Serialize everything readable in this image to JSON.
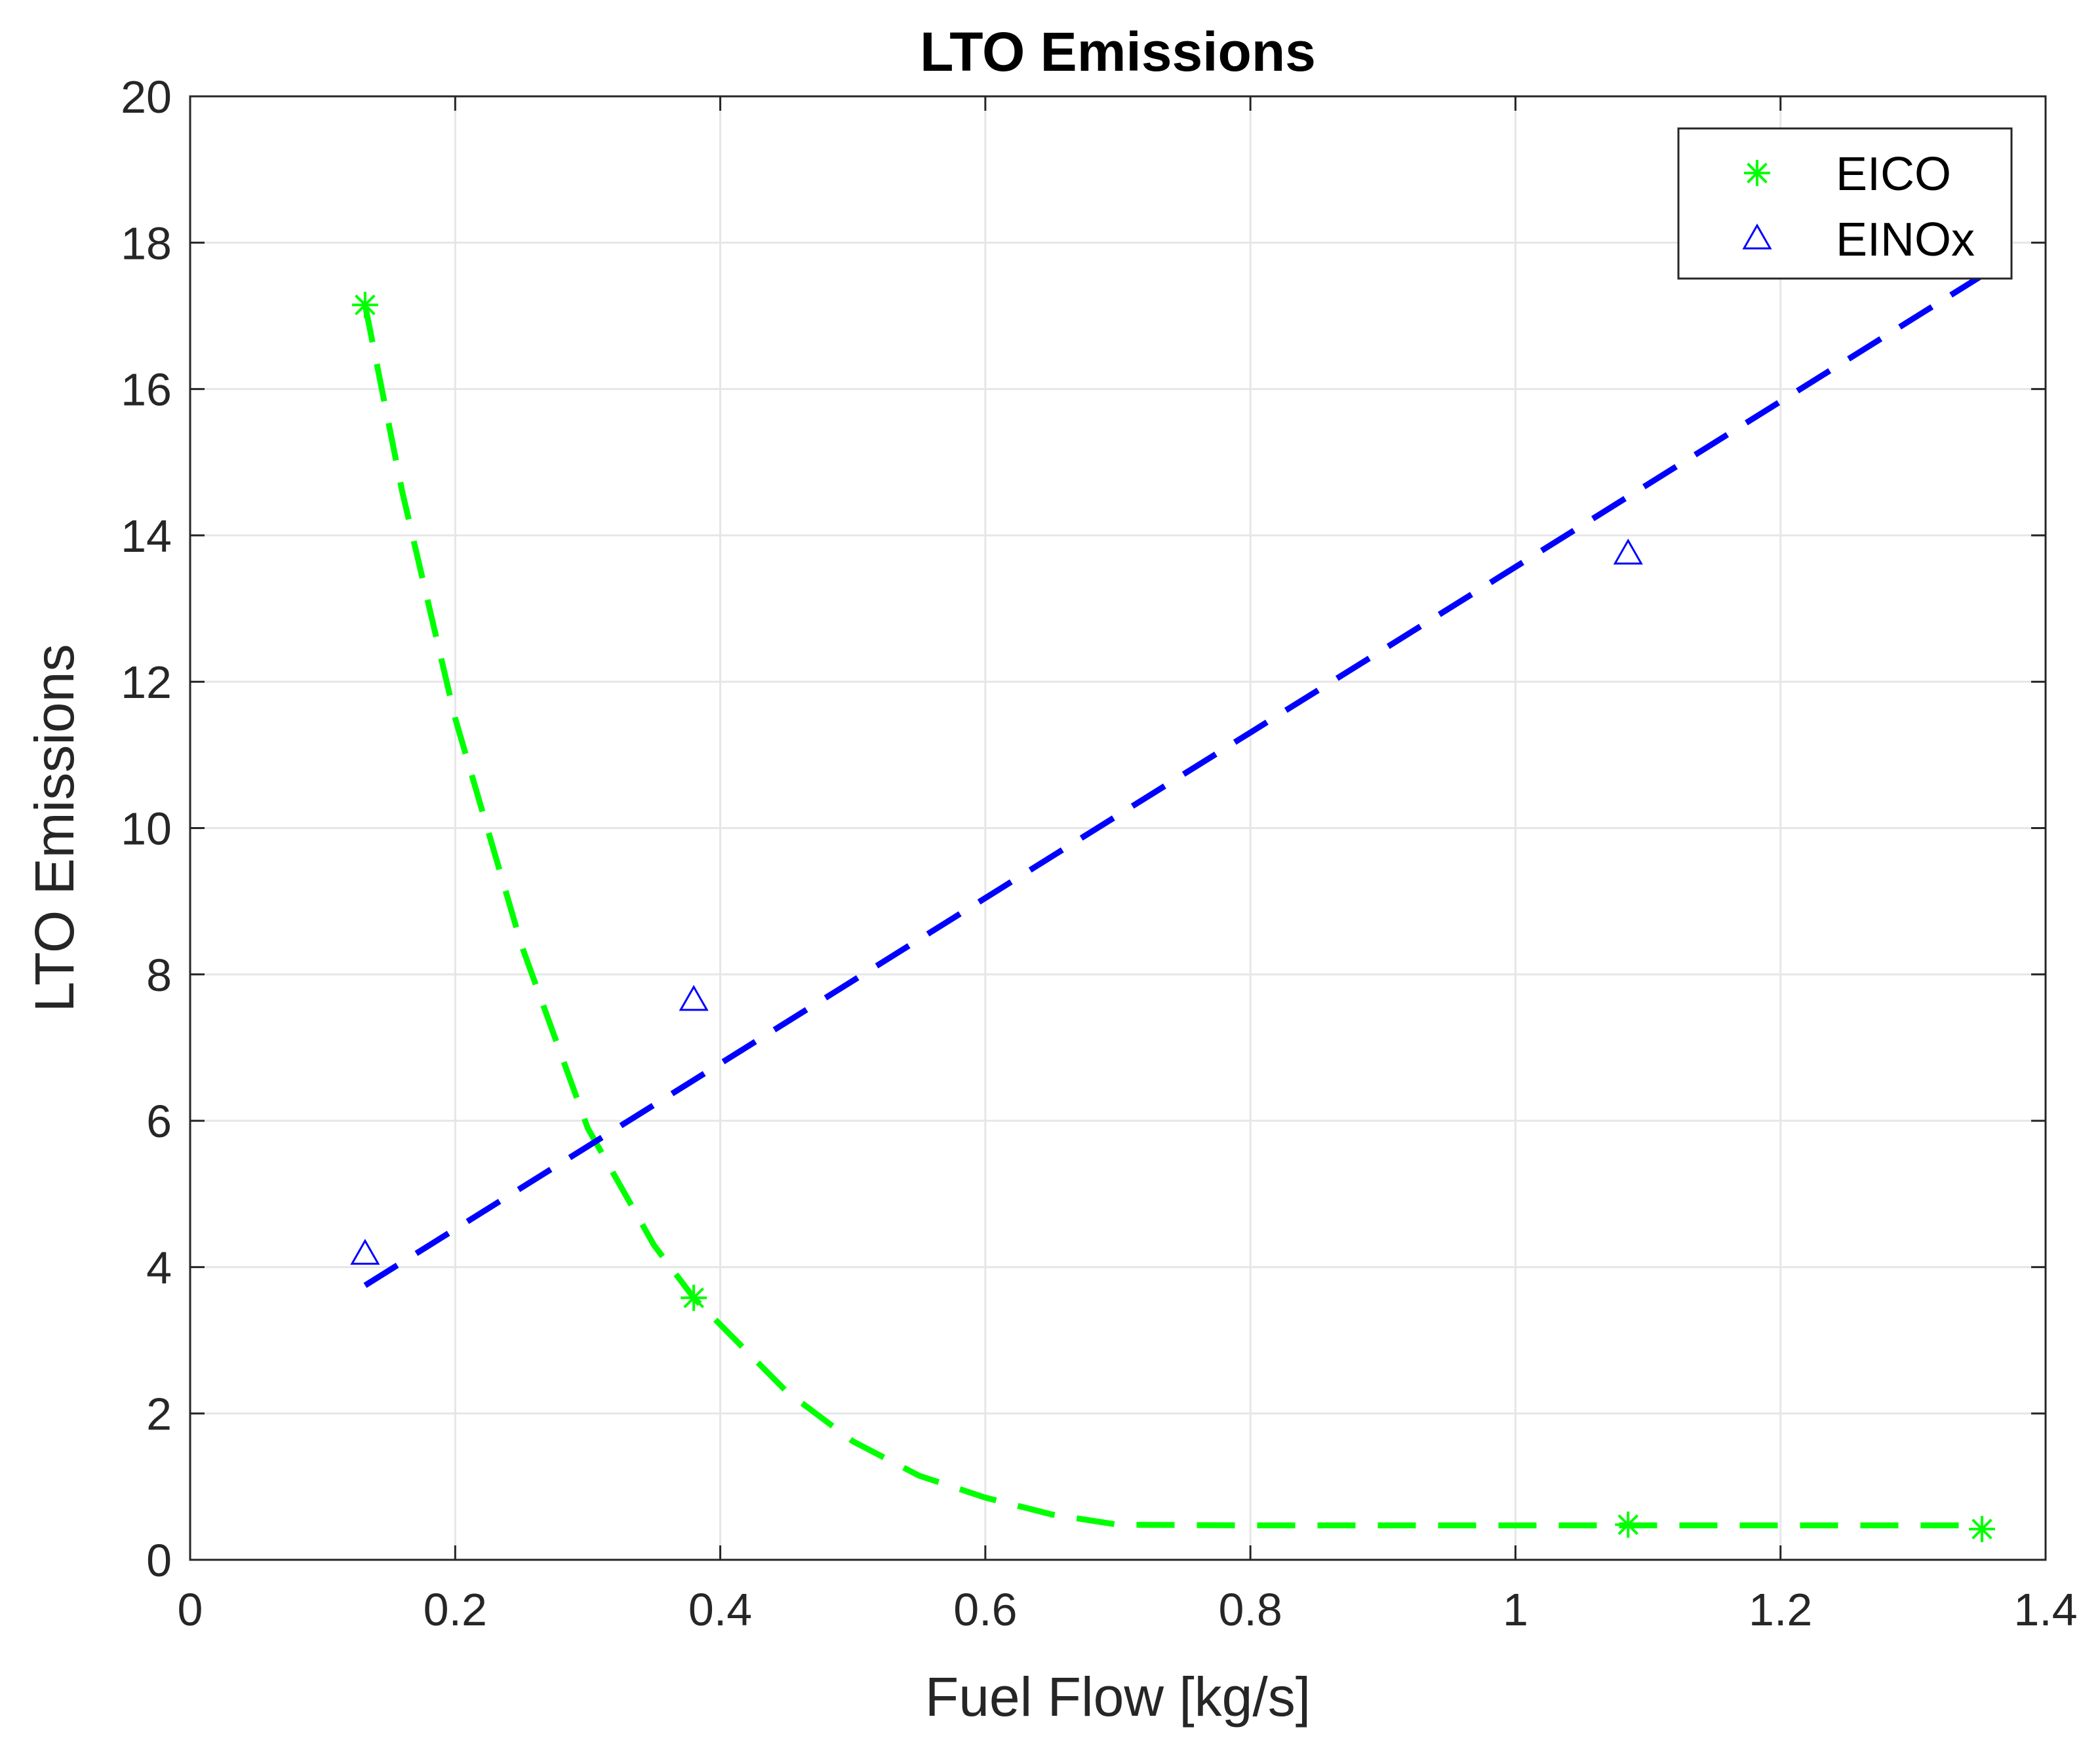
{
  "chart_data": {
    "type": "scatter",
    "title": "LTO Emissions",
    "xlabel": "Fuel Flow [kg/s]",
    "ylabel": "LTO Emissions",
    "xlim": [
      0,
      1.4
    ],
    "ylim": [
      0,
      20
    ],
    "xticks": [
      0,
      0.2,
      0.4,
      0.6,
      0.8,
      1,
      1.2,
      1.4
    ],
    "xtick_labels": [
      "0",
      "0.2",
      "0.4",
      "0.6",
      "0.8",
      "1",
      "1.2",
      "1.4"
    ],
    "yticks": [
      0,
      2,
      4,
      6,
      8,
      10,
      12,
      14,
      16,
      18,
      20
    ],
    "ytick_labels": [
      "0",
      "2",
      "4",
      "6",
      "8",
      "10",
      "12",
      "14",
      "16",
      "18",
      "20"
    ],
    "grid": true,
    "legend_position": "top-right",
    "series": [
      {
        "name": "EICO",
        "marker": "asterisk",
        "color": "#00ff00",
        "x": [
          0.132,
          0.38,
          1.085,
          1.352
        ],
        "y": [
          17.15,
          3.58,
          0.48,
          0.42
        ],
        "fit": {
          "style": "dashed",
          "color": "#00ff00",
          "x": [
            0.132,
            0.16,
            0.2,
            0.25,
            0.3,
            0.35,
            0.38,
            0.45,
            0.5,
            0.55,
            0.6,
            0.65,
            0.7,
            0.8,
            1.0,
            1.2,
            1.352
          ],
          "y": [
            17.15,
            14.6,
            11.5,
            8.4,
            5.9,
            4.3,
            3.58,
            2.3,
            1.62,
            1.15,
            0.85,
            0.62,
            0.48,
            0.47,
            0.47,
            0.47,
            0.47
          ]
        }
      },
      {
        "name": "EINOx",
        "marker": "triangle",
        "color": "#0000ff",
        "x": [
          0.132,
          0.38,
          1.085
        ],
        "y": [
          4.18,
          7.65,
          13.75
        ],
        "fit": {
          "style": "dashed",
          "color": "#0000ff",
          "x": [
            0.132,
            1.352
          ],
          "y": [
            3.75,
            17.55
          ]
        }
      }
    ]
  }
}
